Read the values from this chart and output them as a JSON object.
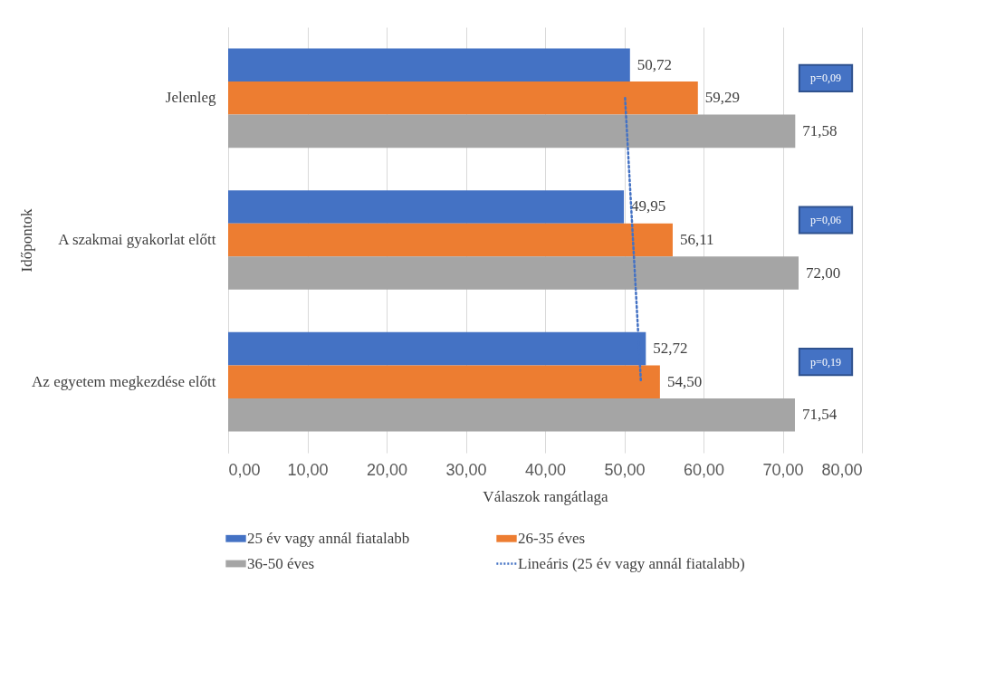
{
  "chart_data": {
    "type": "bar",
    "orientation": "horizontal",
    "xlabel": "Válaszok rangátlaga",
    "ylabel": "Időpontok",
    "categories": [
      "Jelenleg",
      "A szakmai gyakorlat előtt",
      "Az egyetem megkezdése előtt"
    ],
    "series": [
      {
        "name": "25 év vagy annál fiatalabb",
        "color": "#4472c4",
        "values": [
          50.72,
          49.95,
          52.72
        ],
        "value_labels": [
          "50,72",
          "49,95",
          "52,72"
        ]
      },
      {
        "name": "26-35 éves",
        "color": "#ed7d31",
        "values": [
          59.29,
          56.11,
          54.5
        ],
        "value_labels": [
          "59,29",
          "56,11",
          "54,50"
        ]
      },
      {
        "name": "36-50 éves",
        "color": "#a5a5a5",
        "values": [
          71.58,
          72.0,
          71.54
        ],
        "value_labels": [
          "71,58",
          "72,00",
          "71,54"
        ]
      },
      {
        "name": "Lineáris (25 év vagy annál fiatalabb)",
        "type": "line",
        "color": "#4472c4",
        "values": [
          50.1,
          51.1,
          52.1
        ],
        "line_style": "dotted",
        "marker": "none"
      }
    ],
    "xlim": [
      0,
      80
    ],
    "xticks": [
      {
        "value": 0,
        "label": "0,00"
      },
      {
        "value": 10,
        "label": "10,00"
      },
      {
        "value": 20,
        "label": "20,00"
      },
      {
        "value": 30,
        "label": "30,00"
      },
      {
        "value": 40,
        "label": "40,00"
      },
      {
        "value": 50,
        "label": "50,00"
      },
      {
        "value": 60,
        "label": "60,00"
      },
      {
        "value": 70,
        "label": "70,00"
      },
      {
        "value": 80,
        "label": "80,00"
      }
    ],
    "grid": "x",
    "legend": "bottom",
    "annotations": [
      "p=0,09",
      "p=0,06",
      "p=0,19"
    ]
  }
}
